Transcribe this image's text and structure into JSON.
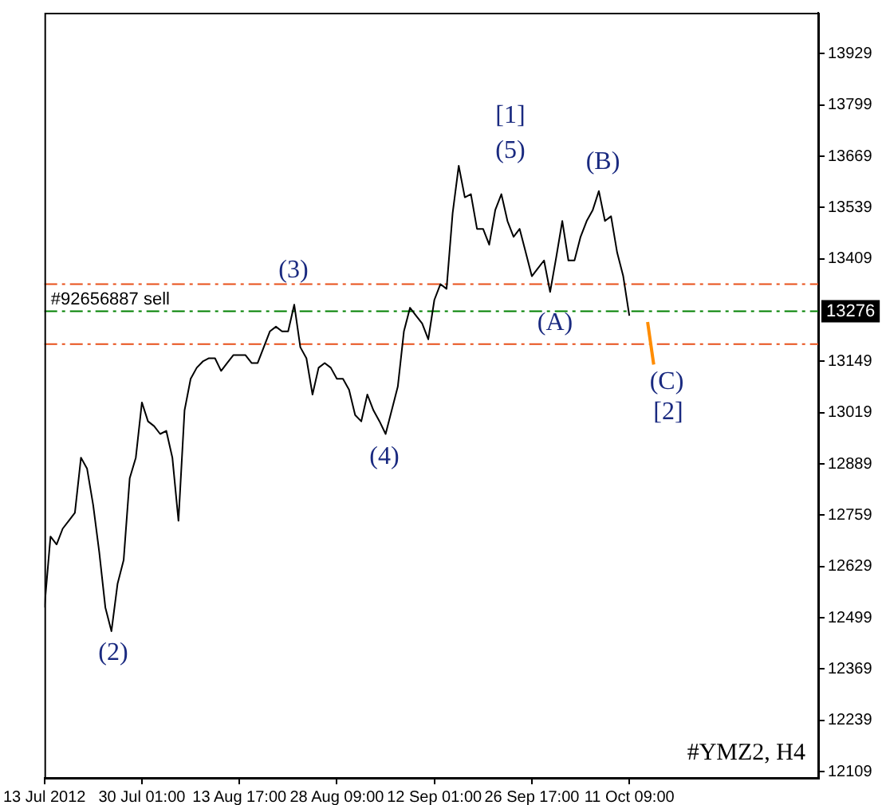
{
  "chart_data": {
    "type": "line",
    "categories": [
      "13 Jul 2012",
      null,
      null,
      null,
      null,
      null,
      null,
      null,
      null,
      null,
      null,
      null,
      null,
      null,
      null,
      null,
      "30 Jul 01:00",
      null,
      null,
      null,
      null,
      null,
      null,
      null,
      null,
      null,
      null,
      null,
      null,
      null,
      null,
      null,
      "13 Aug 17:00",
      null,
      null,
      null,
      null,
      null,
      null,
      null,
      null,
      null,
      null,
      null,
      null,
      null,
      null,
      null,
      "28 Aug 09:00",
      null,
      null,
      null,
      null,
      null,
      null,
      null,
      null,
      null,
      null,
      null,
      null,
      null,
      null,
      null,
      "12 Sep 01:00",
      null,
      null,
      null,
      null,
      null,
      null,
      null,
      null,
      null,
      null,
      null,
      null,
      null,
      null,
      null,
      "26 Sep 17:00",
      null,
      null,
      null,
      null,
      null,
      null,
      null,
      null,
      null,
      null,
      null,
      null,
      null,
      null,
      null,
      "11 Oct 09:00",
      null,
      null,
      null,
      null,
      null,
      null,
      null,
      null,
      null,
      null,
      null,
      null,
      null,
      null,
      null,
      null,
      null,
      null,
      null,
      null,
      null,
      null,
      null,
      null,
      null,
      null,
      null,
      null,
      null,
      null,
      null
    ],
    "series": [
      {
        "color": "#000000",
        "values": [
          12525,
          12705,
          12685,
          12725,
          12745,
          12765,
          12905,
          12877,
          12785,
          12665,
          12525,
          12465,
          12585,
          12645,
          12853,
          12905,
          13045,
          12997,
          12985,
          12965,
          12973,
          12905,
          12745,
          13025,
          13105,
          13133,
          13149,
          13157,
          13157,
          13125,
          13145,
          13165,
          13165,
          13165,
          13145,
          13145,
          13185,
          13225,
          13237,
          13225,
          13225,
          13293,
          13185,
          13157,
          13065,
          13133,
          13145,
          13133,
          13105,
          13105,
          13077,
          13013,
          12997,
          13065,
          13025,
          12997,
          12965,
          13025,
          13085,
          13225,
          13285,
          13265,
          13245,
          13205,
          13305,
          13345,
          13333,
          13525,
          13645,
          13565,
          13573,
          13485,
          13485,
          13445,
          13533,
          13573,
          13505,
          13465,
          13485,
          13425,
          13365,
          13385,
          13405,
          13325,
          13413,
          13505,
          13405,
          13405,
          13465,
          13505,
          13533,
          13581,
          13505,
          13517,
          13425,
          13365,
          13265,
          null,
          null,
          null,
          null,
          null,
          null,
          null,
          null,
          null,
          null,
          null,
          null,
          null,
          null,
          null,
          null,
          null,
          null,
          null,
          null,
          null,
          null,
          null,
          null,
          null,
          null,
          null,
          null,
          null,
          null,
          null
        ]
      },
      {
        "type": "line",
        "color": "#ff8c00",
        "values": [
          null,
          null,
          null,
          null,
          null,
          null,
          null,
          null,
          null,
          null,
          null,
          null,
          null,
          null,
          null,
          null,
          null,
          null,
          null,
          null,
          null,
          null,
          null,
          null,
          null,
          null,
          null,
          null,
          null,
          null,
          null,
          null,
          null,
          null,
          null,
          null,
          null,
          null,
          null,
          null,
          null,
          null,
          null,
          null,
          null,
          null,
          null,
          null,
          null,
          null,
          null,
          null,
          null,
          null,
          null,
          null,
          null,
          null,
          null,
          null,
          null,
          null,
          null,
          null,
          null,
          null,
          null,
          null,
          null,
          null,
          null,
          null,
          null,
          null,
          null,
          null,
          null,
          null,
          null,
          null,
          null,
          null,
          null,
          null,
          null,
          null,
          null,
          null,
          null,
          null,
          null,
          null,
          null,
          null,
          null,
          null,
          null,
          null,
          null,
          13249,
          13141,
          null,
          null,
          null,
          null,
          null,
          null,
          null,
          null,
          null,
          null,
          null,
          null,
          null,
          null,
          null,
          null,
          null,
          null,
          null,
          null,
          null,
          null,
          null,
          null,
          null,
          null,
          null
        ]
      }
    ],
    "ylim": [
      12093,
      14033
    ],
    "yticks": [
      12109,
      12239,
      12369,
      12499,
      12629,
      12759,
      12889,
      13019,
      13149,
      13409,
      13539,
      13669,
      13799,
      13929
    ],
    "ref_lines": [
      {
        "axis": "y",
        "value": 13345,
        "color": "#e8501a",
        "line_style": "dashed"
      },
      {
        "axis": "y",
        "value": 13276,
        "color": "#008000",
        "line_style": "dashed",
        "label": "#92656887 sell"
      },
      {
        "axis": "y",
        "value": 13193,
        "color": "#e8501a",
        "line_style": "dashed"
      }
    ],
    "annotations": [
      "[1]",
      "(5)",
      "(3)",
      "(4)",
      "(2)",
      "(A)",
      "(B)",
      "(C)",
      "[2]",
      {
        "text": "13276",
        "y": 13276
      },
      "#YMZ2, H4"
    ]
  }
}
